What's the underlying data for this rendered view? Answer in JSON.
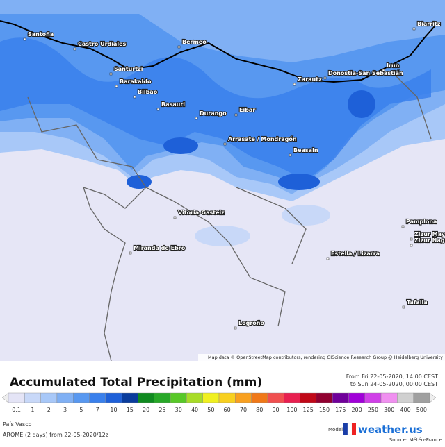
{
  "map": {
    "places": [
      "Santoña",
      "Castro Urdiales",
      "Bermeo",
      "Biarritz",
      "Irun",
      "Donostia-San Sebastián",
      "Zarautz",
      "Santurtzi",
      "Barakaldo",
      "Bilbao",
      "Basauri",
      "Durango",
      "Eibar",
      "Arrasate / Mondragón",
      "Beasain",
      "Vitoria-Gasteiz",
      "Pamplona",
      "Zizur Mayor",
      "Zizur Nagusia",
      "Miranda de Ebro",
      "Estella / Lizarra",
      "Tafalla",
      "Logroño"
    ],
    "attribution": "Map data © OpenStreetMap contributors, rendering GIScience Research Group @ Heidelberg University"
  },
  "legend": {
    "title": "Accumulated Total Precipitation (mm)",
    "period_from": "From Fri 22-05-2020, 14:00 CEST",
    "period_to": "to Sun 24-05-2020, 00:00 CEST",
    "scale": [
      {
        "label": "0.1",
        "color": "#e4e4f6"
      },
      {
        "label": "1",
        "color": "#c8d8f8"
      },
      {
        "label": "2",
        "color": "#a8c8f8"
      },
      {
        "label": "3",
        "color": "#80b0f4"
      },
      {
        "label": "5",
        "color": "#5898f0"
      },
      {
        "label": "7",
        "color": "#3a80ec"
      },
      {
        "label": "10",
        "color": "#1e60d8"
      },
      {
        "label": "15",
        "color": "#0a3c9c"
      },
      {
        "label": "20",
        "color": "#108a20"
      },
      {
        "label": "25",
        "color": "#28a828"
      },
      {
        "label": "30",
        "color": "#58c828"
      },
      {
        "label": "40",
        "color": "#a8dc28"
      },
      {
        "label": "50",
        "color": "#f0f020"
      },
      {
        "label": "60",
        "color": "#f8d020"
      },
      {
        "label": "70",
        "color": "#f8a020"
      },
      {
        "label": "80",
        "color": "#f07818"
      },
      {
        "label": "90",
        "color": "#f05050"
      },
      {
        "label": "100",
        "color": "#e82050"
      },
      {
        "label": "125",
        "color": "#c00818"
      },
      {
        "label": "150",
        "color": "#900030"
      },
      {
        "label": "175",
        "color": "#70009a"
      },
      {
        "label": "200",
        "color": "#a000d8"
      },
      {
        "label": "250",
        "color": "#d040e8"
      },
      {
        "label": "300",
        "color": "#f090f0"
      },
      {
        "label": "400",
        "color": "#d0d0d0"
      },
      {
        "label": "500",
        "color": "#a0a0a0"
      }
    ]
  },
  "footer": {
    "region": "País Vasco",
    "run": "AROME (2 days) from 22-05-2020/12z",
    "model_label": "Model:",
    "brand": "weather.us",
    "source": "Source: Météo-France"
  }
}
